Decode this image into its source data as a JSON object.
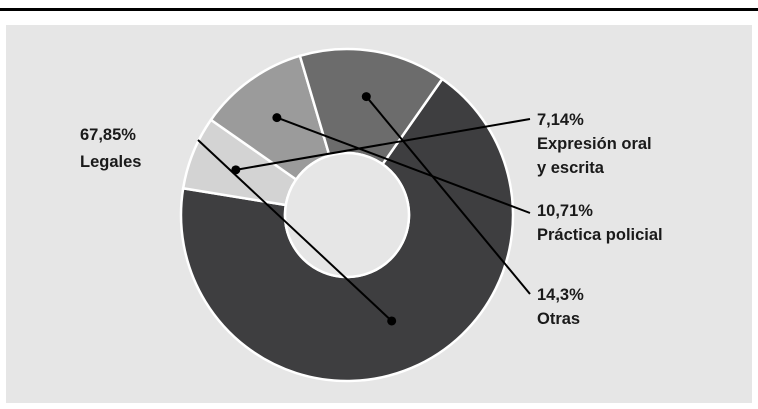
{
  "colors": {
    "panel_bg": "#e6e6e6",
    "separator": "#ffffff",
    "leader": "#000000"
  },
  "chart_data": {
    "type": "pie",
    "donut": true,
    "slices": [
      {
        "percent_label": "67,85%",
        "name_lines": [
          "Legales"
        ],
        "value": 67.85,
        "color": "#3e3e40"
      },
      {
        "percent_label": "7,14%",
        "name_lines": [
          "Expresión oral",
          "y escrita"
        ],
        "value": 7.14,
        "color": "#d3d3d3"
      },
      {
        "percent_label": "10,71%",
        "name_lines": [
          "Práctica policial"
        ],
        "value": 10.71,
        "color": "#9b9b9b"
      },
      {
        "percent_label": "14,3%",
        "name_lines": [
          "Otras"
        ],
        "value": 14.3,
        "color": "#6c6c6c"
      }
    ]
  }
}
